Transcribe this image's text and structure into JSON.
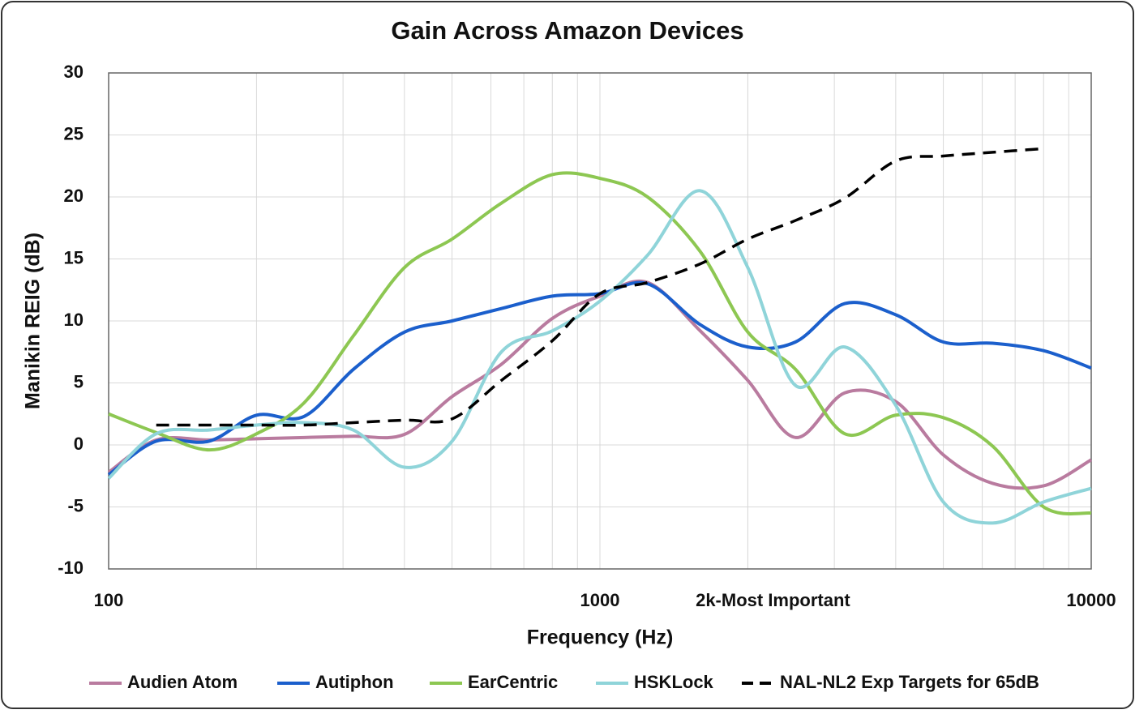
{
  "chart_data": {
    "type": "line",
    "title": "Gain Across Amazon Devices",
    "x_label": "Frequency (Hz)",
    "y_label": "Manikin REIG (dB)",
    "x": [
      100,
      125,
      160,
      200,
      250,
      315,
      400,
      500,
      630,
      800,
      1000,
      1250,
      1600,
      2000,
      2500,
      3150,
      4000,
      5000,
      6300,
      8000,
      10000
    ],
    "series": [
      {
        "name": "Audien Atom",
        "color": "#b97b9f",
        "values": [
          -2.2,
          0.4,
          0.4,
          0.5,
          0.6,
          0.7,
          0.85,
          3.9,
          6.5,
          10.2,
          12,
          13.1,
          9.2,
          5.2,
          0.6,
          4.2,
          3.5,
          -0.8,
          -3.1,
          -3.3,
          -1.2
        ]
      },
      {
        "name": "Autiphon",
        "color": "#1b5fcc",
        "values": [
          -2.4,
          0.3,
          0.3,
          2.4,
          2.3,
          6.1,
          9.1,
          10,
          11,
          12,
          12.2,
          13,
          9.7,
          7.9,
          8.3,
          11.4,
          10.5,
          8.3,
          8.2,
          7.6,
          6.2
        ]
      },
      {
        "name": "EarCentric",
        "color": "#8dc752",
        "values": [
          2.5,
          1.0,
          -0.4,
          0.9,
          3.4,
          8.8,
          14.3,
          16.6,
          19.5,
          21.8,
          21.5,
          20,
          15.6,
          9.1,
          6.1,
          0.9,
          2.4,
          2.2,
          -0.1,
          -5,
          -5.5
        ]
      },
      {
        "name": "HSKLock",
        "color": "#8fd4d9",
        "values": [
          -2.7,
          0.9,
          1.2,
          1.6,
          1.8,
          1.2,
          -1.8,
          0.3,
          7.5,
          9.2,
          11.6,
          15.3,
          20.5,
          14.3,
          4.8,
          7.9,
          3.2,
          -4.6,
          -6.3,
          -4.6,
          -3.5
        ]
      },
      {
        "name": "NAL-NL2 Exp Targets for 65dB",
        "color": "#000000",
        "dashed": true,
        "values": [
          null,
          1.6,
          1.6,
          1.6,
          1.6,
          1.8,
          2.0,
          2.1,
          5.2,
          8.4,
          12.2,
          13.1,
          14.6,
          16.6,
          18.1,
          19.9,
          22.9,
          23.3,
          23.6,
          23.9,
          null
        ]
      }
    ],
    "x_log": true,
    "xlim": [
      100,
      10000
    ],
    "xticks": [
      100,
      1000,
      {
        "value": 2000,
        "label": "2k-Most Important"
      },
      10000
    ],
    "x_minor_gridlines": [
      200,
      300,
      400,
      500,
      600,
      700,
      800,
      900,
      2000,
      3000,
      4000,
      5000,
      6000,
      7000,
      8000,
      9000
    ],
    "ylim": [
      -10,
      30
    ],
    "yticks": [
      -10,
      -5,
      0,
      5,
      10,
      15,
      20,
      25,
      30
    ],
    "grid": true,
    "legend": "bottom"
  }
}
